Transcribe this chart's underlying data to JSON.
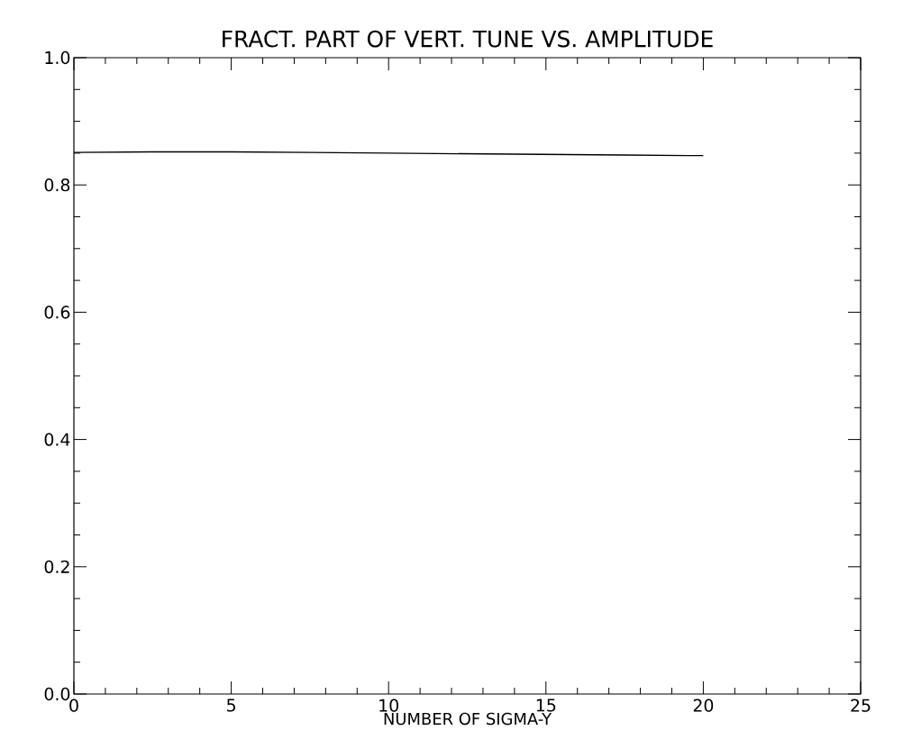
{
  "chart_data": {
    "type": "line",
    "title": "FRACT. PART OF VERT. TUNE VS. AMPLITUDE",
    "xlabel": "NUMBER OF SIGMA-Y",
    "x": [
      0,
      2.5,
      5,
      7.5,
      10,
      12.5,
      15,
      17.5,
      20
    ],
    "series": [
      {
        "color": "#000000",
        "values": [
          0.851,
          0.852,
          0.852,
          0.851,
          0.85,
          0.849,
          0.848,
          0.847,
          0.846
        ]
      }
    ],
    "xlim": [
      0,
      25
    ],
    "ylim": [
      0,
      1
    ],
    "xticks": [
      0,
      5,
      10,
      15,
      20,
      25
    ],
    "yticks": [
      {
        "value": 0,
        "label": "0.0"
      },
      {
        "value": 0.2,
        "label": "0.2"
      },
      {
        "value": 0.4,
        "label": "0.4"
      },
      {
        "value": 0.6,
        "label": "0.6"
      },
      {
        "value": 0.8,
        "label": "0.8"
      },
      {
        "value": 1,
        "label": "1.0"
      }
    ],
    "grid": false,
    "legend": false,
    "marker": "none",
    "line_style": "solid"
  }
}
